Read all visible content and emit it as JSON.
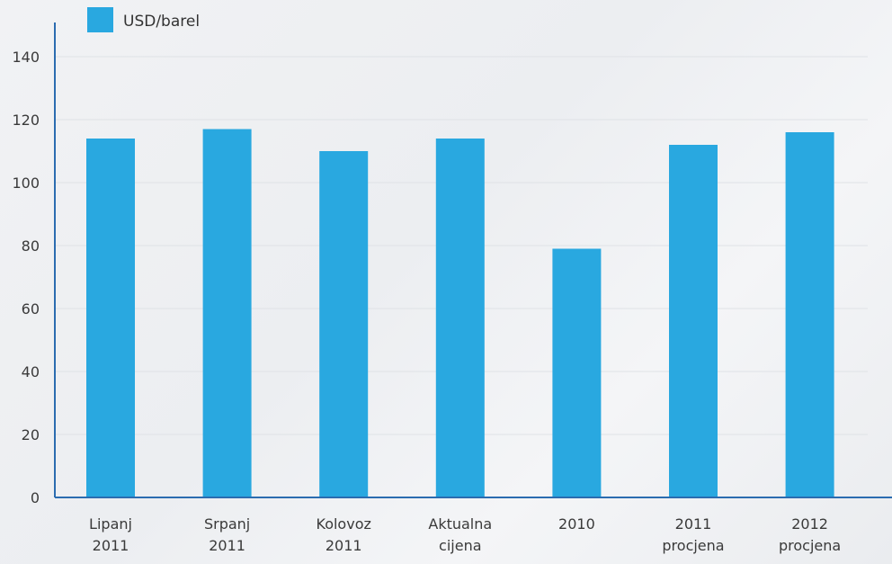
{
  "chart_data": {
    "type": "bar",
    "categories": [
      [
        "Lipanj",
        "2011"
      ],
      [
        "Srpanj",
        "2011"
      ],
      [
        "Kolovoz",
        "2011"
      ],
      [
        "Aktualna",
        "cijena"
      ],
      [
        "2010"
      ],
      [
        "2011",
        "procjena"
      ],
      [
        "2012",
        "procjena"
      ]
    ],
    "series": [
      {
        "name": "USD/barel",
        "values": [
          114,
          117,
          110,
          114,
          79,
          112,
          116
        ]
      }
    ],
    "ylim": [
      0,
      140
    ],
    "yticks": [
      0,
      20,
      40,
      60,
      80,
      100,
      120,
      140
    ],
    "grid": true,
    "legend_position": "top-left",
    "colors": {
      "bar": "#29a8e0",
      "axis": "#2b6cb0",
      "grid": "#dfe2e6"
    }
  }
}
